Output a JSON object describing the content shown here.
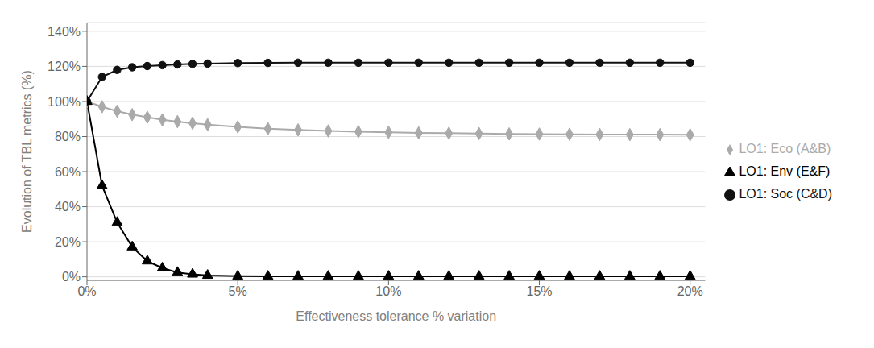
{
  "chart_data": {
    "type": "line",
    "xlabel": "Effectiveness tolerance % variation",
    "ylabel": "Evolution of TBL metrics (%)",
    "xlim": [
      0.0,
      0.205
    ],
    "ylim": [
      -0.02,
      1.45
    ],
    "xticks": [
      {
        "value": 0.0,
        "label": "0%"
      },
      {
        "value": 0.05,
        "label": "5%"
      },
      {
        "value": 0.1,
        "label": "10%"
      },
      {
        "value": 0.15,
        "label": "15%"
      },
      {
        "value": 0.2,
        "label": "20%"
      }
    ],
    "yticks": [
      {
        "value": 0.0,
        "label": "0%"
      },
      {
        "value": 0.2,
        "label": "20%"
      },
      {
        "value": 0.4,
        "label": "40%"
      },
      {
        "value": 0.6,
        "label": "60%"
      },
      {
        "value": 0.8,
        "label": "80%"
      },
      {
        "value": 1.0,
        "label": "100%"
      },
      {
        "value": 1.2,
        "label": "120%"
      },
      {
        "value": 1.4,
        "label": "140%"
      }
    ],
    "x": [
      0.0,
      0.005,
      0.01,
      0.015,
      0.02,
      0.025,
      0.03,
      0.035,
      0.04,
      0.05,
      0.06,
      0.07,
      0.08,
      0.09,
      0.1,
      0.11,
      0.12,
      0.13,
      0.14,
      0.15,
      0.16,
      0.17,
      0.18,
      0.19,
      0.2
    ],
    "series": [
      {
        "name": "LO1: Eco (A&B)",
        "color": "#aaaaaa",
        "marker": "diamond",
        "values": [
          1.0,
          0.97,
          0.945,
          0.925,
          0.91,
          0.895,
          0.885,
          0.876,
          0.868,
          0.855,
          0.845,
          0.838,
          0.832,
          0.828,
          0.824,
          0.821,
          0.819,
          0.817,
          0.815,
          0.814,
          0.813,
          0.812,
          0.811,
          0.811,
          0.81
        ]
      },
      {
        "name": "LO1: Soc (C&D)",
        "color": "#111111",
        "marker": "circle",
        "values": [
          1.0,
          1.14,
          1.18,
          1.195,
          1.202,
          1.207,
          1.211,
          1.214,
          1.216,
          1.219,
          1.22,
          1.221,
          1.221,
          1.221,
          1.221,
          1.221,
          1.221,
          1.221,
          1.221,
          1.221,
          1.221,
          1.221,
          1.221,
          1.221,
          1.221
        ]
      },
      {
        "name": "LO1: Env (E&F)",
        "color": "#000000",
        "marker": "triangle",
        "values": [
          1.0,
          0.52,
          0.31,
          0.17,
          0.09,
          0.05,
          0.025,
          0.015,
          0.008,
          0.004,
          0.003,
          0.003,
          0.003,
          0.003,
          0.003,
          0.003,
          0.003,
          0.003,
          0.003,
          0.003,
          0.003,
          0.003,
          0.003,
          0.003,
          0.003
        ]
      }
    ],
    "grid": "y",
    "legend": "right"
  }
}
